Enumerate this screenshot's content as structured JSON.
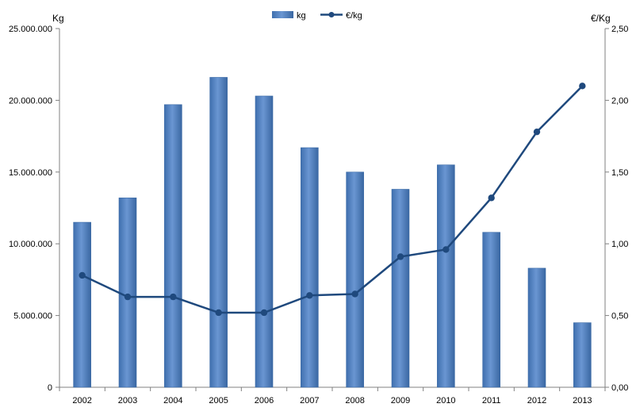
{
  "chart_data": {
    "type": "bar",
    "categories": [
      "2002",
      "2003",
      "2004",
      "2005",
      "2006",
      "2007",
      "2008",
      "2009",
      "2010",
      "2011",
      "2012",
      "2013"
    ],
    "series": [
      {
        "name": "kg",
        "type": "bar",
        "axis": "left",
        "values": [
          11500000,
          13200000,
          19700000,
          21600000,
          20300000,
          16700000,
          15000000,
          13800000,
          15500000,
          10800000,
          8300000,
          4500000
        ]
      },
      {
        "name": "€/kg",
        "type": "line",
        "axis": "right",
        "values": [
          0.78,
          0.63,
          0.63,
          0.52,
          0.52,
          0.64,
          0.65,
          0.91,
          0.96,
          1.32,
          1.78,
          2.1
        ]
      }
    ],
    "ylabel": "Kg",
    "y2label": "€/Kg",
    "ylim": [
      0,
      25000000
    ],
    "y2lim": [
      0,
      2.5
    ],
    "yticks": [
      "0",
      "5.000.000",
      "10.000.000",
      "15.000.000",
      "20.000.000",
      "25.000.000"
    ],
    "y2ticks": [
      "0,00",
      "0,50",
      "1,00",
      "1,50",
      "2,00",
      "2,50"
    ],
    "legend_position": "top-center",
    "grid": false,
    "colors": {
      "bar": "#4f81bd",
      "bar_dark": "#3a6aa6",
      "line": "#1f497d",
      "axis": "#808080"
    }
  }
}
